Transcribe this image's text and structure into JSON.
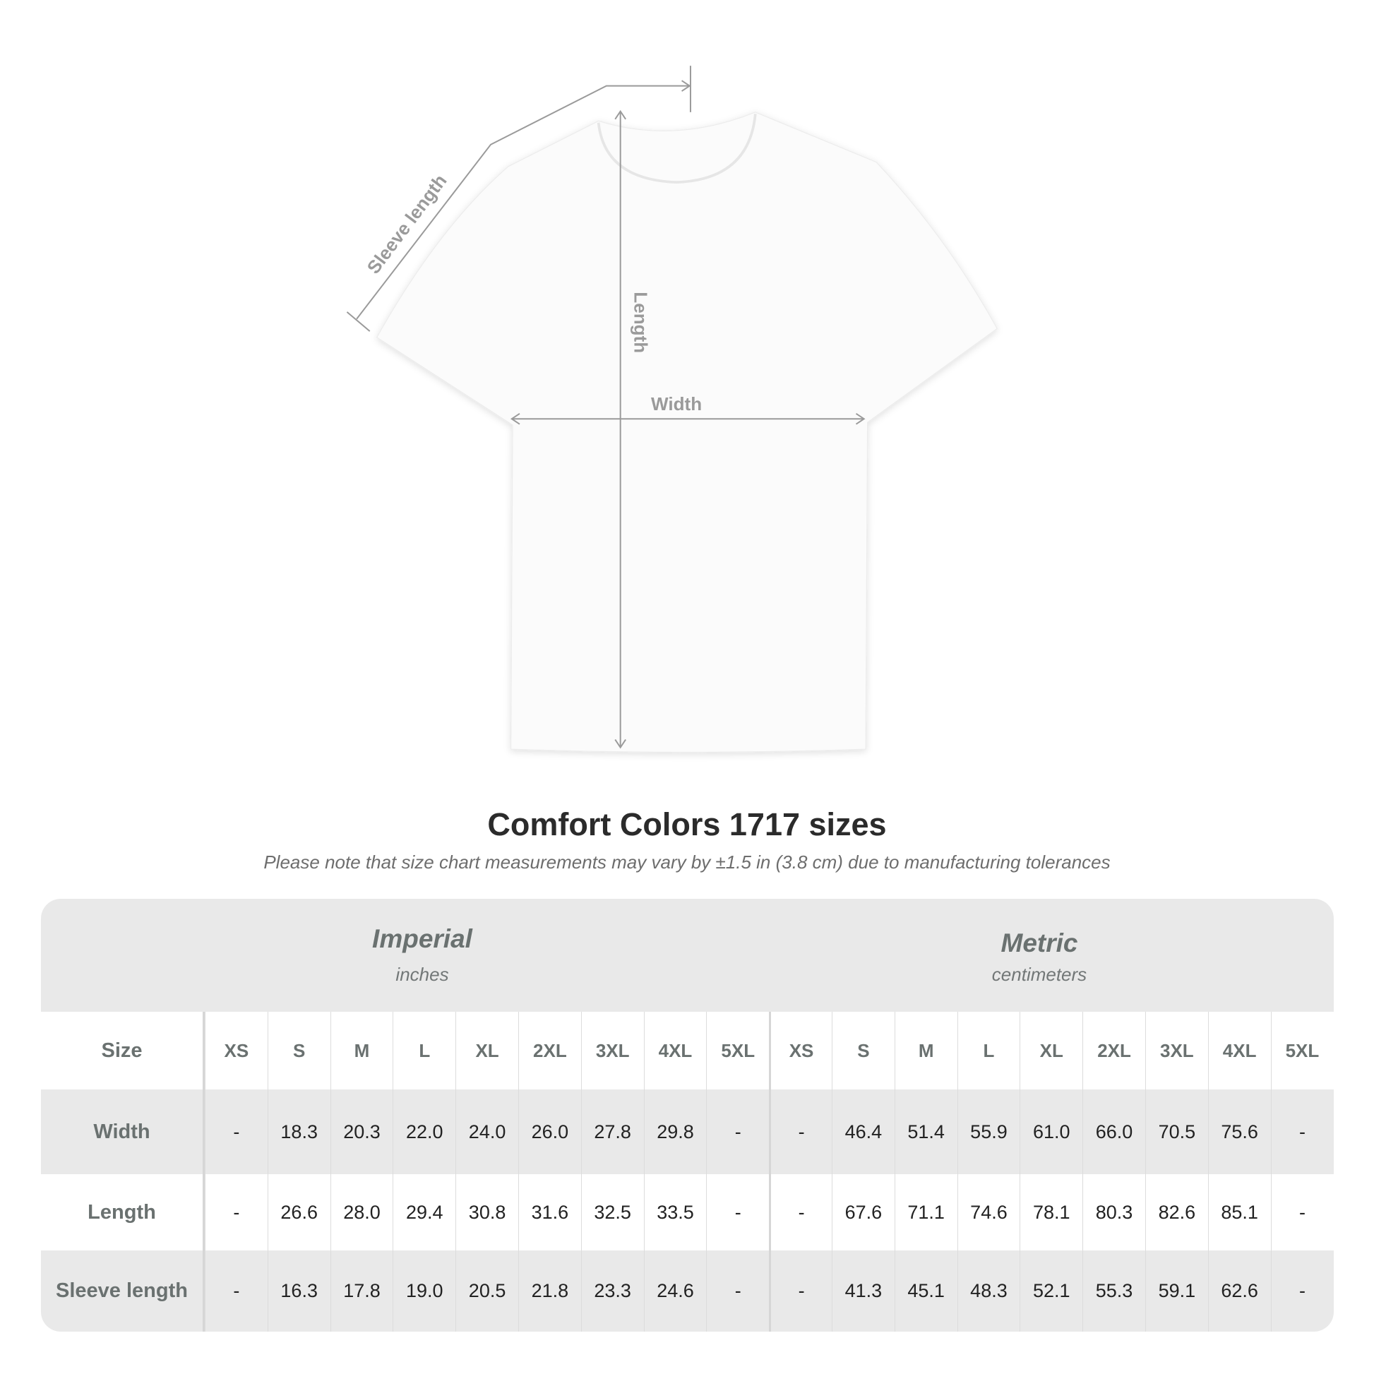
{
  "diagram": {
    "labels": {
      "sleeve_length": "Sleeve length",
      "length": "Length",
      "width": "Width"
    },
    "line_color": "#9a9a9a"
  },
  "title": "Comfort Colors 1717 sizes",
  "subtitle": "Please note that size chart measurements may vary by ±1.5 in (3.8 cm) due to manufacturing tolerances",
  "table": {
    "imperial": {
      "heading": "Imperial",
      "unit": "inches"
    },
    "metric": {
      "heading": "Metric",
      "unit": "centimeters"
    },
    "size_label": "Size",
    "sizes": [
      "XS",
      "S",
      "M",
      "L",
      "XL",
      "2XL",
      "3XL",
      "4XL",
      "5XL"
    ],
    "rows": [
      {
        "label": "Width",
        "imperial": [
          "-",
          "18.3",
          "20.3",
          "22.0",
          "24.0",
          "26.0",
          "27.8",
          "29.8",
          "-"
        ],
        "metric": [
          "-",
          "46.4",
          "51.4",
          "55.9",
          "61.0",
          "66.0",
          "70.5",
          "75.6",
          "-"
        ]
      },
      {
        "label": "Length",
        "imperial": [
          "-",
          "26.6",
          "28.0",
          "29.4",
          "30.8",
          "31.6",
          "32.5",
          "33.5",
          "-"
        ],
        "metric": [
          "-",
          "67.6",
          "71.1",
          "74.6",
          "78.1",
          "80.3",
          "82.6",
          "85.1",
          "-"
        ]
      },
      {
        "label": "Sleeve length",
        "imperial": [
          "-",
          "16.3",
          "17.8",
          "19.0",
          "20.5",
          "21.8",
          "23.3",
          "24.6",
          "-"
        ],
        "metric": [
          "-",
          "41.3",
          "45.1",
          "48.3",
          "52.1",
          "55.3",
          "59.1",
          "62.6",
          "-"
        ]
      }
    ]
  }
}
